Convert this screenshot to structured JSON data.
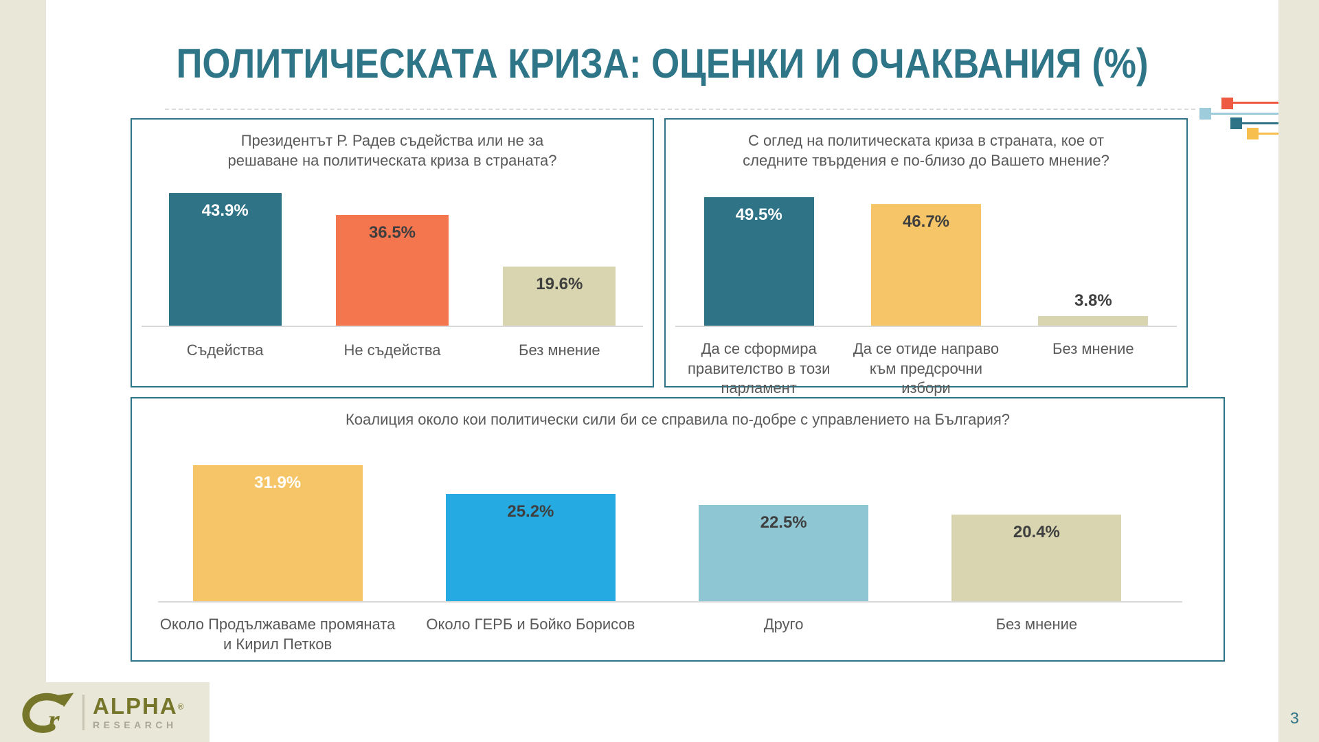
{
  "slide": {
    "title": "ПОЛИТИЧЕСКАТА КРИЗА: ОЦЕНКИ И ОЧАКВАНИЯ (%)",
    "page_number": "3",
    "colors": {
      "accent_teal": "#2e7386",
      "title_teal": "#2f7588",
      "background_beige": "#e9e7d8",
      "text_gray": "#595959",
      "value_dark": "#3f3f3f",
      "axis_gray": "#d9d9d9"
    },
    "decor_squares": [
      {
        "name": "red-square",
        "color": "#ee5a41"
      },
      {
        "name": "light-blue-square",
        "color": "#9fccdb"
      },
      {
        "name": "teal-square",
        "color": "#2e7386"
      },
      {
        "name": "yellow-square",
        "color": "#f6bf4e"
      }
    ]
  },
  "logo": {
    "brand": "ALPHA",
    "reg": "®",
    "sub": "RESEARCH",
    "olive": "#76762b",
    "gray": "#aaa69a"
  },
  "chart_data": [
    {
      "type": "bar",
      "title": "Президентът Р. Радев съдейства или не за решаване на политическата криза в страната?",
      "categories": [
        "Съдейства",
        "Не съдейства",
        "Без мнение"
      ],
      "values": [
        43.9,
        36.5,
        19.6
      ],
      "value_labels": [
        "43.9%",
        "36.5%",
        "19.6%"
      ],
      "bar_colors": [
        "#2f7386",
        "#f3764f",
        "#d8d5b0"
      ],
      "value_label_colors": [
        "#ffffff",
        "#3f3f3f",
        "#3f3f3f"
      ],
      "xlabel": "",
      "ylabel": "",
      "ylim": [
        0,
        50
      ],
      "grid": false,
      "legend_position": "none",
      "data_labels": true
    },
    {
      "type": "bar",
      "title": "С оглед на политическата криза в страната, кое от следните твърдения е по-близо до Вашето мнение?",
      "categories": [
        "Да се сформира правителство в този парламент",
        "Да се отиде направо към предсрочни избори",
        "Без мнение"
      ],
      "values": [
        49.5,
        46.7,
        3.8
      ],
      "value_labels": [
        "49.5%",
        "46.7%",
        "3.8%"
      ],
      "bar_colors": [
        "#2f7386",
        "#f5c567",
        "#d8d5b0"
      ],
      "value_label_colors": [
        "#ffffff",
        "#3f3f3f",
        "#3f3f3f"
      ],
      "xlabel": "",
      "ylabel": "",
      "ylim": [
        0,
        55
      ],
      "grid": false,
      "legend_position": "none",
      "data_labels": true
    },
    {
      "type": "bar",
      "title": "Коалиция около кои политически сили би се справила по-добре с управлението на България?",
      "categories": [
        "Около Продължаваме промяната и Кирил Петков",
        "Около ГЕРБ и Бойко Борисов",
        "Друго",
        "Без мнение"
      ],
      "values": [
        31.9,
        25.2,
        22.5,
        20.4
      ],
      "value_labels": [
        "31.9%",
        "25.2%",
        "22.5%",
        "20.4%"
      ],
      "bar_colors": [
        "#f5c567",
        "#25aae1",
        "#8ec6d3",
        "#d8d5b0"
      ],
      "value_label_colors": [
        "#ffffff",
        "#3f3f3f",
        "#3f3f3f",
        "#3f3f3f"
      ],
      "xlabel": "",
      "ylabel": "",
      "ylim": [
        0,
        35
      ],
      "grid": false,
      "legend_position": "none",
      "data_labels": true
    }
  ]
}
